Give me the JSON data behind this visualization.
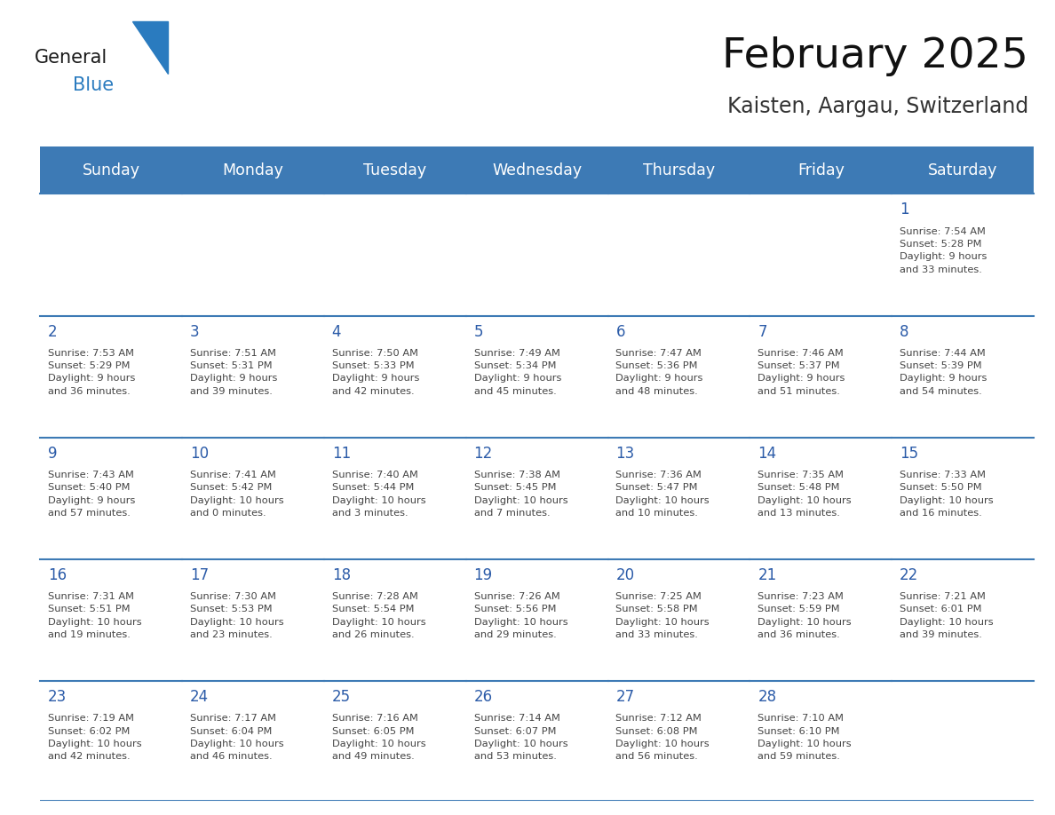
{
  "title": "February 2025",
  "subtitle": "Kaisten, Aargau, Switzerland",
  "header_color": "#3d7ab5",
  "header_text_color": "#ffffff",
  "day_headers": [
    "Sunday",
    "Monday",
    "Tuesday",
    "Wednesday",
    "Thursday",
    "Friday",
    "Saturday"
  ],
  "text_color": "#444444",
  "number_color": "#2b5ba8",
  "row_separator_color": "#3d7ab5",
  "cell_bg": "#f3f6fa",
  "logo_general_color": "#1a1a1a",
  "logo_blue_color": "#2a7bbf",
  "weeks": [
    [
      {
        "day": null,
        "info": null
      },
      {
        "day": null,
        "info": null
      },
      {
        "day": null,
        "info": null
      },
      {
        "day": null,
        "info": null
      },
      {
        "day": null,
        "info": null
      },
      {
        "day": null,
        "info": null
      },
      {
        "day": 1,
        "info": "Sunrise: 7:54 AM\nSunset: 5:28 PM\nDaylight: 9 hours\nand 33 minutes."
      }
    ],
    [
      {
        "day": 2,
        "info": "Sunrise: 7:53 AM\nSunset: 5:29 PM\nDaylight: 9 hours\nand 36 minutes."
      },
      {
        "day": 3,
        "info": "Sunrise: 7:51 AM\nSunset: 5:31 PM\nDaylight: 9 hours\nand 39 minutes."
      },
      {
        "day": 4,
        "info": "Sunrise: 7:50 AM\nSunset: 5:33 PM\nDaylight: 9 hours\nand 42 minutes."
      },
      {
        "day": 5,
        "info": "Sunrise: 7:49 AM\nSunset: 5:34 PM\nDaylight: 9 hours\nand 45 minutes."
      },
      {
        "day": 6,
        "info": "Sunrise: 7:47 AM\nSunset: 5:36 PM\nDaylight: 9 hours\nand 48 minutes."
      },
      {
        "day": 7,
        "info": "Sunrise: 7:46 AM\nSunset: 5:37 PM\nDaylight: 9 hours\nand 51 minutes."
      },
      {
        "day": 8,
        "info": "Sunrise: 7:44 AM\nSunset: 5:39 PM\nDaylight: 9 hours\nand 54 minutes."
      }
    ],
    [
      {
        "day": 9,
        "info": "Sunrise: 7:43 AM\nSunset: 5:40 PM\nDaylight: 9 hours\nand 57 minutes."
      },
      {
        "day": 10,
        "info": "Sunrise: 7:41 AM\nSunset: 5:42 PM\nDaylight: 10 hours\nand 0 minutes."
      },
      {
        "day": 11,
        "info": "Sunrise: 7:40 AM\nSunset: 5:44 PM\nDaylight: 10 hours\nand 3 minutes."
      },
      {
        "day": 12,
        "info": "Sunrise: 7:38 AM\nSunset: 5:45 PM\nDaylight: 10 hours\nand 7 minutes."
      },
      {
        "day": 13,
        "info": "Sunrise: 7:36 AM\nSunset: 5:47 PM\nDaylight: 10 hours\nand 10 minutes."
      },
      {
        "day": 14,
        "info": "Sunrise: 7:35 AM\nSunset: 5:48 PM\nDaylight: 10 hours\nand 13 minutes."
      },
      {
        "day": 15,
        "info": "Sunrise: 7:33 AM\nSunset: 5:50 PM\nDaylight: 10 hours\nand 16 minutes."
      }
    ],
    [
      {
        "day": 16,
        "info": "Sunrise: 7:31 AM\nSunset: 5:51 PM\nDaylight: 10 hours\nand 19 minutes."
      },
      {
        "day": 17,
        "info": "Sunrise: 7:30 AM\nSunset: 5:53 PM\nDaylight: 10 hours\nand 23 minutes."
      },
      {
        "day": 18,
        "info": "Sunrise: 7:28 AM\nSunset: 5:54 PM\nDaylight: 10 hours\nand 26 minutes."
      },
      {
        "day": 19,
        "info": "Sunrise: 7:26 AM\nSunset: 5:56 PM\nDaylight: 10 hours\nand 29 minutes."
      },
      {
        "day": 20,
        "info": "Sunrise: 7:25 AM\nSunset: 5:58 PM\nDaylight: 10 hours\nand 33 minutes."
      },
      {
        "day": 21,
        "info": "Sunrise: 7:23 AM\nSunset: 5:59 PM\nDaylight: 10 hours\nand 36 minutes."
      },
      {
        "day": 22,
        "info": "Sunrise: 7:21 AM\nSunset: 6:01 PM\nDaylight: 10 hours\nand 39 minutes."
      }
    ],
    [
      {
        "day": 23,
        "info": "Sunrise: 7:19 AM\nSunset: 6:02 PM\nDaylight: 10 hours\nand 42 minutes."
      },
      {
        "day": 24,
        "info": "Sunrise: 7:17 AM\nSunset: 6:04 PM\nDaylight: 10 hours\nand 46 minutes."
      },
      {
        "day": 25,
        "info": "Sunrise: 7:16 AM\nSunset: 6:05 PM\nDaylight: 10 hours\nand 49 minutes."
      },
      {
        "day": 26,
        "info": "Sunrise: 7:14 AM\nSunset: 6:07 PM\nDaylight: 10 hours\nand 53 minutes."
      },
      {
        "day": 27,
        "info": "Sunrise: 7:12 AM\nSunset: 6:08 PM\nDaylight: 10 hours\nand 56 minutes."
      },
      {
        "day": 28,
        "info": "Sunrise: 7:10 AM\nSunset: 6:10 PM\nDaylight: 10 hours\nand 59 minutes."
      },
      {
        "day": null,
        "info": null
      }
    ]
  ]
}
